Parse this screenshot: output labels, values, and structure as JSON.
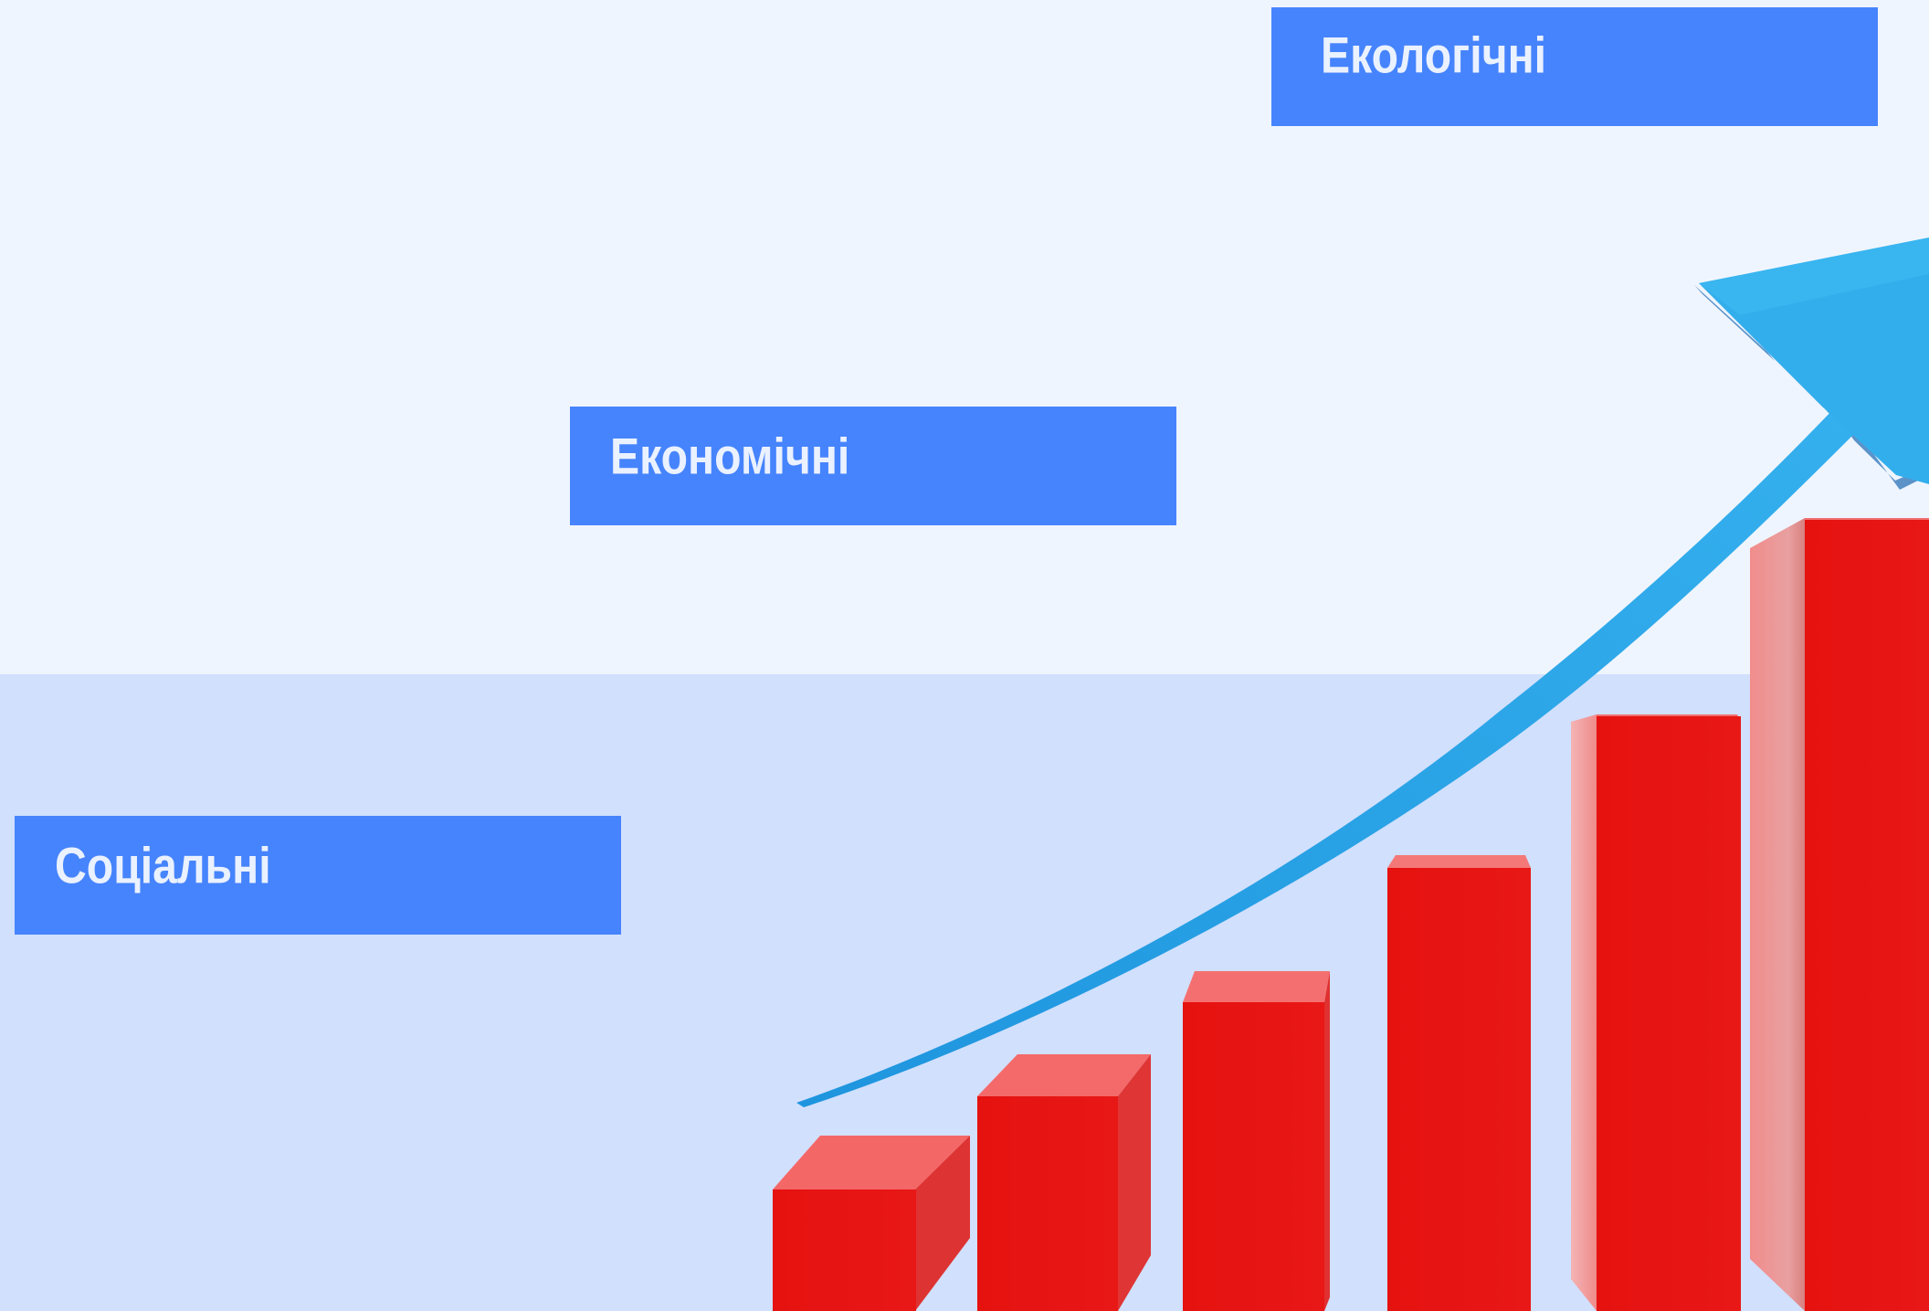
{
  "labels": {
    "ecological": "Екологічні",
    "economic": "Економічні",
    "social": "Соціальні"
  },
  "colors": {
    "background_top": "#eff5fe",
    "background_bottom": "#d1e0fd",
    "label_box": "#4684fd",
    "label_text": "#eaf1ff",
    "bar_front": "#e8120f",
    "bar_top": "#f46a6a",
    "bar_side": "#f08585",
    "arrow": "#2aa3e6",
    "arrow_shadow": "#5b93c9"
  },
  "illustration": {
    "icon": "growth-bar-chart-with-rising-arrow-icon",
    "bar_count": 6
  }
}
